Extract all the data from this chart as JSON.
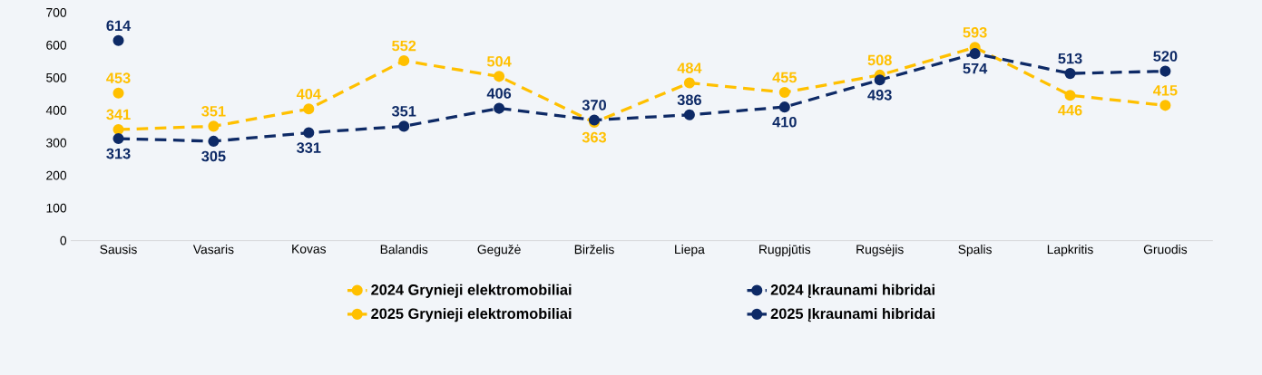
{
  "chart_data": {
    "type": "line",
    "categories": [
      "Sausis",
      "Vasaris",
      "Kovas",
      "Balandis",
      "Gegužė",
      "Birželis",
      "Liepa",
      "Rugpjūtis",
      "Rugsėjis",
      "Spalis",
      "Lapkritis",
      "Gruodis"
    ],
    "series": [
      {
        "name": "2024 Grynieji elektromobiliai",
        "color": "#ffc000",
        "line_style": "dashed",
        "values": [
          341,
          351,
          404,
          552,
          504,
          363,
          484,
          455,
          508,
          593,
          446,
          415
        ]
      },
      {
        "name": "2024 Įkraunami hibridai",
        "color": "#0e2a66",
        "line_style": "dashed",
        "values": [
          313,
          305,
          331,
          351,
          406,
          370,
          386,
          410,
          493,
          574,
          513,
          520
        ]
      },
      {
        "name": "2025 Grynieji elektromobiliai",
        "color": "#ffc000",
        "line_style": "solid",
        "values": [
          453,
          null,
          null,
          null,
          null,
          null,
          null,
          null,
          null,
          null,
          null,
          null
        ]
      },
      {
        "name": "2025 Įkraunami hibridai",
        "color": "#0e2a66",
        "line_style": "solid",
        "values": [
          614,
          null,
          null,
          null,
          null,
          null,
          null,
          null,
          null,
          null,
          null,
          null
        ]
      }
    ],
    "ylim": [
      0,
      700
    ],
    "yticks": [
      0,
      100,
      200,
      300,
      400,
      500,
      600,
      700
    ],
    "marker": "circle",
    "data_labels": true,
    "legend": "bottom"
  }
}
